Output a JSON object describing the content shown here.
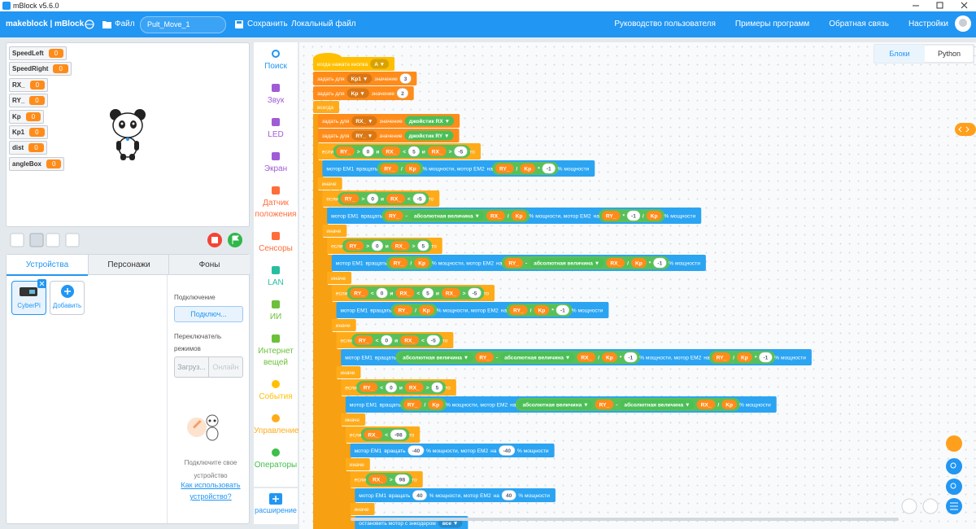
{
  "window": {
    "title": "mBlock v5.6.0"
  },
  "menu": {
    "brand": "makeblock | mBlock",
    "file": "Файл",
    "project": "Pult_Move_1",
    "save": "Сохранить",
    "local": "Локальный файл",
    "links": [
      "Руководство пользователя",
      "Примеры программ",
      "Обратная связь",
      "Настройки"
    ]
  },
  "variables": [
    {
      "name": "SpeedLeft",
      "value": 0
    },
    {
      "name": "SpeedRight",
      "value": 0
    },
    {
      "name": "RX_",
      "value": 0
    },
    {
      "name": "RY_",
      "value": 0
    },
    {
      "name": "Kp",
      "value": 0
    },
    {
      "name": "Kp1",
      "value": 0
    },
    {
      "name": "dist",
      "value": 0
    },
    {
      "name": "angleBox",
      "value": 0
    }
  ],
  "tabs": [
    "Устройства",
    "Персонажи",
    "Фоны"
  ],
  "devices": {
    "items": [
      "CyberPi"
    ],
    "add": "Добавить"
  },
  "connect": {
    "label": "Подключение",
    "button": "Подключ...",
    "mode_label": "Переключатель режимов",
    "modes": [
      "Загруз...",
      "Онлайн"
    ],
    "hint": "Подключите свое устройство",
    "help": "Как использовать устройство?"
  },
  "categories": [
    {
      "name": "Поиск",
      "color": "#2196f3"
    },
    {
      "name": "Звук",
      "color": "#a05bd6"
    },
    {
      "name": "LED",
      "color": "#a05bd6"
    },
    {
      "name": "Экран",
      "color": "#a05bd6"
    },
    {
      "name": "Датчик положения",
      "color": "#ff6d3a"
    },
    {
      "name": "Сенсоры",
      "color": "#ff6d3a"
    },
    {
      "name": "LAN",
      "color": "#26bfa0"
    },
    {
      "name": "ИИ",
      "color": "#6cc03a"
    },
    {
      "name": "Интернет вещей",
      "color": "#6cc03a"
    },
    {
      "name": "События",
      "color": "#ffbf00"
    },
    {
      "name": "Управление",
      "color": "#ffab19"
    },
    {
      "name": "Операторы",
      "color": "#40bf4a"
    }
  ],
  "extension": "расширение",
  "code_tabs": [
    "Блоки",
    "Python"
  ],
  "blocks": [
    {
      "level": 0,
      "color": "#ffbf00",
      "tokens": [
        {
          "t": "когда нажата кнопка"
        },
        {
          "t": "A ▼",
          "s": "d"
        }
      ]
    },
    {
      "level": 0,
      "color": "#ff8c1a",
      "tokens": [
        {
          "t": "задать для"
        },
        {
          "t": "Kp1 ▼",
          "s": "d"
        },
        {
          "t": "значение"
        },
        {
          "t": "3",
          "s": "n"
        }
      ]
    },
    {
      "level": 0,
      "color": "#ff8c1a",
      "tokens": [
        {
          "t": "задать для"
        },
        {
          "t": "Kp ▼",
          "s": "d"
        },
        {
          "t": "значение"
        },
        {
          "t": "2",
          "s": "n"
        }
      ]
    },
    {
      "level": 0,
      "color": "#ffab19",
      "tokens": [
        {
          "t": "всегда"
        }
      ]
    },
    {
      "level": 1,
      "color": "#ff8c1a",
      "tokens": [
        {
          "t": "задать для"
        },
        {
          "t": "RX_ ▼",
          "s": "d"
        },
        {
          "t": "значение"
        },
        {
          "t": "джойстик RX ▼",
          "s": "f"
        }
      ]
    },
    {
      "level": 1,
      "color": "#ff8c1a",
      "tokens": [
        {
          "t": "задать для"
        },
        {
          "t": "RY_ ▼",
          "s": "d"
        },
        {
          "t": "значение"
        },
        {
          "t": "джойстик RY ▼",
          "s": "f"
        }
      ]
    },
    {
      "level": 1,
      "color": "#ffab19",
      "tokens": [
        {
          "t": "если"
        },
        {
          "t": "RY_",
          "s": "v"
        },
        {
          "t": ">",
          "s": "o"
        },
        {
          "t": "0",
          "s": "n"
        },
        {
          "t": "и",
          "s": "o"
        },
        {
          "t": "RX_",
          "s": "v"
        },
        {
          "t": "<",
          "s": "o"
        },
        {
          "t": "5",
          "s": "n"
        },
        {
          "t": "и",
          "s": "o"
        },
        {
          "t": "RX_",
          "s": "v"
        },
        {
          "t": ">",
          "s": "o"
        },
        {
          "t": "-5",
          "s": "n"
        },
        {
          "t": "то"
        }
      ]
    },
    {
      "level": 2,
      "color": "#2ba4f2",
      "tokens": [
        {
          "t": "мотор EM1"
        },
        {
          "t": "вращать"
        },
        {
          "t": "RY_",
          "s": "v"
        },
        {
          "t": "/",
          "s": "o"
        },
        {
          "t": "Kp",
          "s": "v"
        },
        {
          "t": "% мощности, мотор EM2"
        },
        {
          "t": "на"
        },
        {
          "t": "RY_",
          "s": "v"
        },
        {
          "t": "/",
          "s": "o"
        },
        {
          "t": "Kp",
          "s": "v"
        },
        {
          "t": "*",
          "s": "o"
        },
        {
          "t": "-1",
          "s": "n"
        },
        {
          "t": "% мощности"
        }
      ]
    },
    {
      "level": 1,
      "color": "#ffab19",
      "tokens": [
        {
          "t": "иначе"
        }
      ]
    },
    {
      "level": 2,
      "color": "#ffab19",
      "tokens": [
        {
          "t": "если"
        },
        {
          "t": "RY_",
          "s": "v"
        },
        {
          "t": ">",
          "s": "o"
        },
        {
          "t": "0",
          "s": "n"
        },
        {
          "t": "и",
          "s": "o"
        },
        {
          "t": "RX_",
          "s": "v"
        },
        {
          "t": "<",
          "s": "o"
        },
        {
          "t": "-5",
          "s": "n"
        },
        {
          "t": "то"
        }
      ]
    },
    {
      "level": 3,
      "color": "#2ba4f2",
      "tokens": [
        {
          "t": "мотор EM1"
        },
        {
          "t": "вращать"
        },
        {
          "t": "RY_",
          "s": "v"
        },
        {
          "t": "-",
          "s": "o"
        },
        {
          "t": "абсолютная величина ▼",
          "s": "f"
        },
        {
          "t": "RX_",
          "s": "v"
        },
        {
          "t": "/",
          "s": "o"
        },
        {
          "t": "Kp",
          "s": "v"
        },
        {
          "t": "% мощности, мотор EM2"
        },
        {
          "t": "на"
        },
        {
          "t": "RY_",
          "s": "v"
        },
        {
          "t": "*",
          "s": "o"
        },
        {
          "t": "-1",
          "s": "n"
        },
        {
          "t": "/",
          "s": "o"
        },
        {
          "t": "Kp",
          "s": "v"
        },
        {
          "t": "% мощности"
        }
      ]
    },
    {
      "level": 2,
      "color": "#ffab19",
      "tokens": [
        {
          "t": "иначе"
        }
      ]
    },
    {
      "level": 3,
      "color": "#ffab19",
      "tokens": [
        {
          "t": "если"
        },
        {
          "t": "RY_",
          "s": "v"
        },
        {
          "t": ">",
          "s": "o"
        },
        {
          "t": "0",
          "s": "n"
        },
        {
          "t": "и",
          "s": "o"
        },
        {
          "t": "RX_",
          "s": "v"
        },
        {
          "t": ">",
          "s": "o"
        },
        {
          "t": "5",
          "s": "n"
        },
        {
          "t": "то"
        }
      ]
    },
    {
      "level": 4,
      "color": "#2ba4f2",
      "tokens": [
        {
          "t": "мотор EM1"
        },
        {
          "t": "вращать"
        },
        {
          "t": "RY_",
          "s": "v"
        },
        {
          "t": "/",
          "s": "o"
        },
        {
          "t": "Kp",
          "s": "v"
        },
        {
          "t": "% мощности, мотор EM2"
        },
        {
          "t": "на"
        },
        {
          "t": "RY_",
          "s": "v"
        },
        {
          "t": "-",
          "s": "o"
        },
        {
          "t": "абсолютная величина ▼",
          "s": "f"
        },
        {
          "t": "RX_",
          "s": "v"
        },
        {
          "t": "/",
          "s": "o"
        },
        {
          "t": "Kp",
          "s": "v"
        },
        {
          "t": "*",
          "s": "o"
        },
        {
          "t": "-1",
          "s": "n"
        },
        {
          "t": "% мощности"
        }
      ]
    },
    {
      "level": 3,
      "color": "#ffab19",
      "tokens": [
        {
          "t": "иначе"
        }
      ]
    },
    {
      "level": 4,
      "color": "#ffab19",
      "tokens": [
        {
          "t": "если"
        },
        {
          "t": "RY_",
          "s": "v"
        },
        {
          "t": "<",
          "s": "o"
        },
        {
          "t": "0",
          "s": "n"
        },
        {
          "t": "и",
          "s": "o"
        },
        {
          "t": "RX_",
          "s": "v"
        },
        {
          "t": "<",
          "s": "o"
        },
        {
          "t": "5",
          "s": "n"
        },
        {
          "t": "и",
          "s": "o"
        },
        {
          "t": "RX_",
          "s": "v"
        },
        {
          "t": ">",
          "s": "o"
        },
        {
          "t": "-5",
          "s": "n"
        },
        {
          "t": "то"
        }
      ]
    },
    {
      "level": 5,
      "color": "#2ba4f2",
      "tokens": [
        {
          "t": "мотор EM1"
        },
        {
          "t": "вращать"
        },
        {
          "t": "RY_",
          "s": "v"
        },
        {
          "t": "/",
          "s": "o"
        },
        {
          "t": "Kp",
          "s": "v"
        },
        {
          "t": "% мощности, мотор EM2"
        },
        {
          "t": "на"
        },
        {
          "t": "RY_",
          "s": "v"
        },
        {
          "t": "/",
          "s": "o"
        },
        {
          "t": "Kp",
          "s": "v"
        },
        {
          "t": "*",
          "s": "o"
        },
        {
          "t": "-1",
          "s": "n"
        },
        {
          "t": "% мощности"
        }
      ]
    },
    {
      "level": 4,
      "color": "#ffab19",
      "tokens": [
        {
          "t": "иначе"
        }
      ]
    },
    {
      "level": 5,
      "color": "#ffab19",
      "tokens": [
        {
          "t": "если"
        },
        {
          "t": "RY_",
          "s": "v"
        },
        {
          "t": "<",
          "s": "o"
        },
        {
          "t": "0",
          "s": "n"
        },
        {
          "t": "и",
          "s": "o"
        },
        {
          "t": "RX_",
          "s": "v"
        },
        {
          "t": "<",
          "s": "o"
        },
        {
          "t": "-5",
          "s": "n"
        },
        {
          "t": "то"
        }
      ]
    },
    {
      "level": 6,
      "color": "#2ba4f2",
      "tokens": [
        {
          "t": "мотор EM1"
        },
        {
          "t": "вращать"
        },
        {
          "t": "абсолютная величина ▼",
          "s": "f"
        },
        {
          "t": "RY_",
          "s": "v"
        },
        {
          "t": "-",
          "s": "o"
        },
        {
          "t": "абсолютная величина ▼",
          "s": "f"
        },
        {
          "t": "RX_",
          "s": "v"
        },
        {
          "t": "/",
          "s": "o"
        },
        {
          "t": "Kp",
          "s": "v"
        },
        {
          "t": "*",
          "s": "o"
        },
        {
          "t": "-1",
          "s": "n"
        },
        {
          "t": "% мощности, мотор EM2"
        },
        {
          "t": "на"
        },
        {
          "t": "RY_",
          "s": "v"
        },
        {
          "t": "/",
          "s": "o"
        },
        {
          "t": "Kp",
          "s": "v"
        },
        {
          "t": "*",
          "s": "o"
        },
        {
          "t": "-1",
          "s": "n"
        },
        {
          "t": "% мощности"
        }
      ]
    },
    {
      "level": 5,
      "color": "#ffab19",
      "tokens": [
        {
          "t": "иначе"
        }
      ]
    },
    {
      "level": 6,
      "color": "#ffab19",
      "tokens": [
        {
          "t": "если"
        },
        {
          "t": "RY_",
          "s": "v"
        },
        {
          "t": "<",
          "s": "o"
        },
        {
          "t": "0",
          "s": "n"
        },
        {
          "t": "и",
          "s": "o"
        },
        {
          "t": "RX_",
          "s": "v"
        },
        {
          "t": ">",
          "s": "o"
        },
        {
          "t": "5",
          "s": "n"
        },
        {
          "t": "то"
        }
      ]
    },
    {
      "level": 7,
      "color": "#2ba4f2",
      "tokens": [
        {
          "t": "мотор EM1"
        },
        {
          "t": "вращать"
        },
        {
          "t": "RY_",
          "s": "v"
        },
        {
          "t": "/",
          "s": "o"
        },
        {
          "t": "Kp",
          "s": "v"
        },
        {
          "t": "% мощности, мотор EM2"
        },
        {
          "t": "на"
        },
        {
          "t": "абсолютная величина ▼",
          "s": "f"
        },
        {
          "t": "RY_",
          "s": "v"
        },
        {
          "t": "-",
          "s": "o"
        },
        {
          "t": "абсолютная величина ▼",
          "s": "f"
        },
        {
          "t": "RX_",
          "s": "v"
        },
        {
          "t": "/",
          "s": "o"
        },
        {
          "t": "Kp",
          "s": "v"
        },
        {
          "t": "% мощности"
        }
      ]
    },
    {
      "level": 6,
      "color": "#ffab19",
      "tokens": [
        {
          "t": "иначе"
        }
      ]
    },
    {
      "level": 7,
      "color": "#ffab19",
      "tokens": [
        {
          "t": "если"
        },
        {
          "t": "RX_",
          "s": "v"
        },
        {
          "t": "<",
          "s": "o"
        },
        {
          "t": "-98",
          "s": "n"
        },
        {
          "t": "то"
        }
      ]
    },
    {
      "level": 8,
      "color": "#2ba4f2",
      "tokens": [
        {
          "t": "мотор EM1"
        },
        {
          "t": "вращать"
        },
        {
          "t": "-40",
          "s": "n"
        },
        {
          "t": "% мощности, мотор EM2"
        },
        {
          "t": "на"
        },
        {
          "t": "-40",
          "s": "n"
        },
        {
          "t": "% мощности"
        }
      ]
    },
    {
      "level": 7,
      "color": "#ffab19",
      "tokens": [
        {
          "t": "иначе"
        }
      ]
    },
    {
      "level": 8,
      "color": "#ffab19",
      "tokens": [
        {
          "t": "если"
        },
        {
          "t": "RX_",
          "s": "v"
        },
        {
          "t": ">",
          "s": "o"
        },
        {
          "t": "98",
          "s": "n"
        },
        {
          "t": "то"
        }
      ]
    },
    {
      "level": 9,
      "color": "#2ba4f2",
      "tokens": [
        {
          "t": "мотор EM1"
        },
        {
          "t": "вращать"
        },
        {
          "t": "40",
          "s": "n"
        },
        {
          "t": "% мощности, мотор EM2"
        },
        {
          "t": "на"
        },
        {
          "t": "40",
          "s": "n"
        },
        {
          "t": "% мощности"
        }
      ]
    },
    {
      "level": 8,
      "color": "#ffab19",
      "tokens": [
        {
          "t": "иначе"
        }
      ]
    },
    {
      "level": 9,
      "color": "#2ba4f2",
      "tokens": [
        {
          "t": "остановить мотор с энкодером"
        },
        {
          "t": "все ▼",
          "s": "d"
        }
      ]
    }
  ]
}
